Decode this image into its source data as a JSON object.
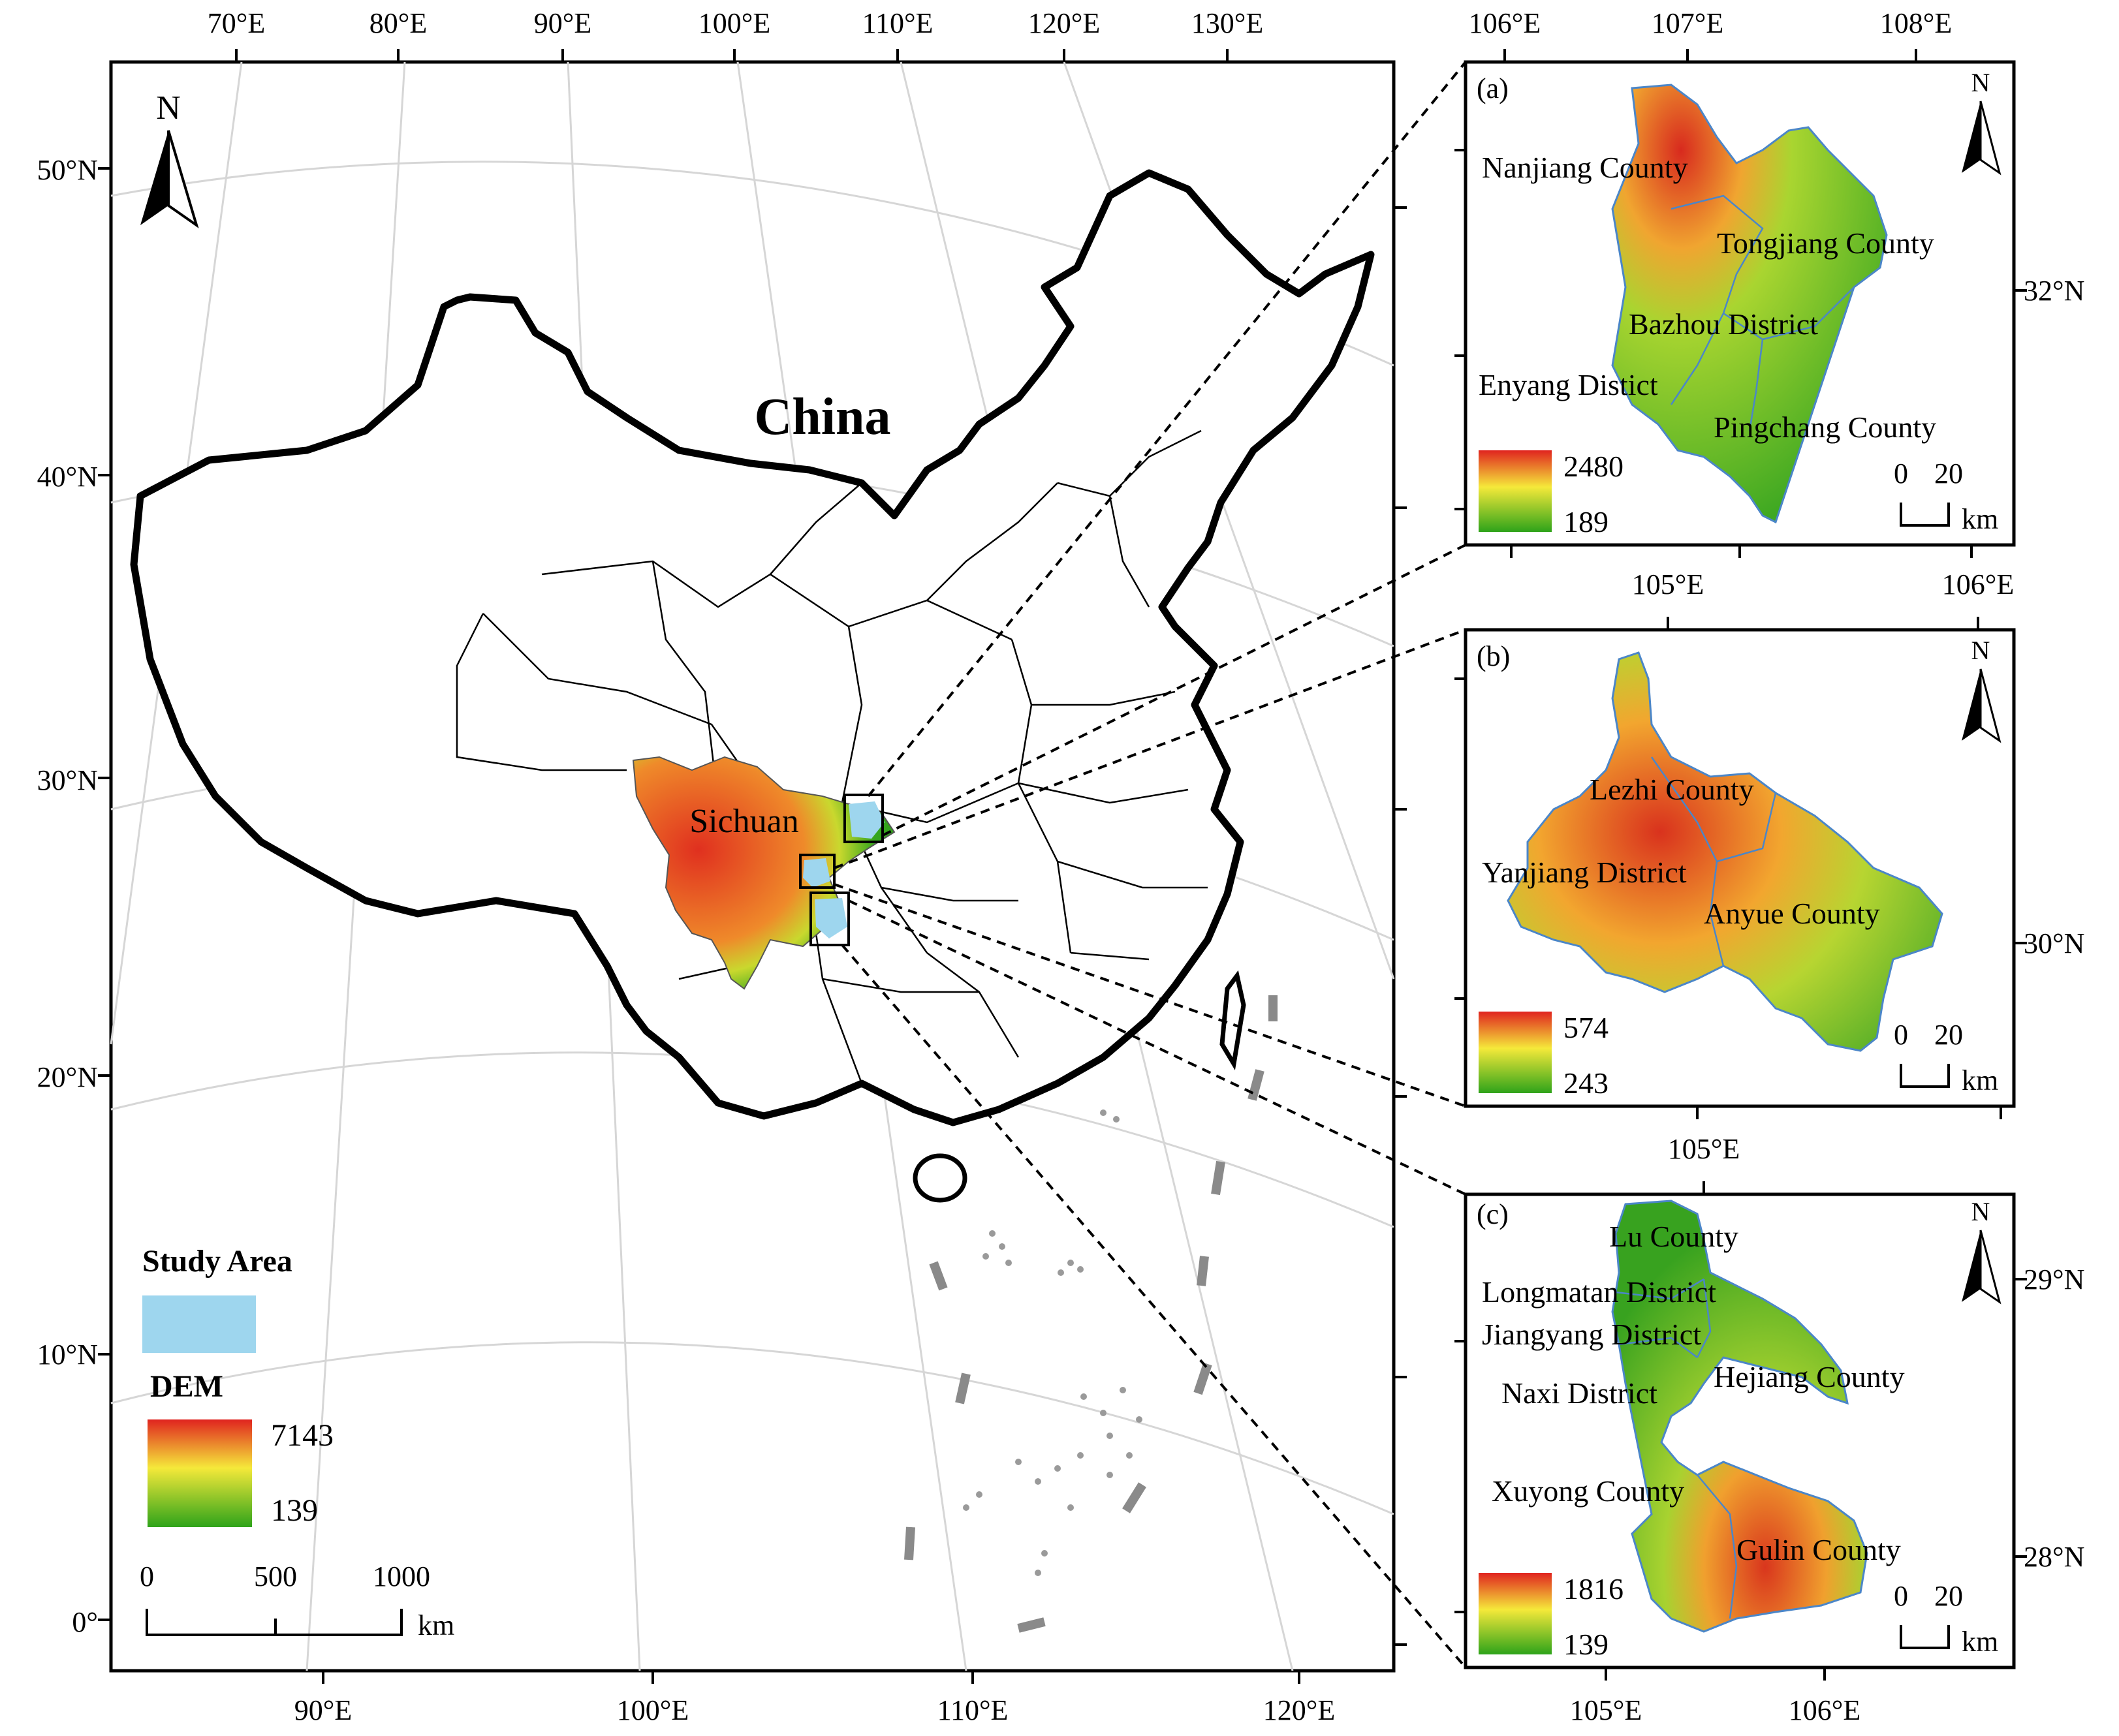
{
  "main_map": {
    "country_label": "China",
    "province_label": "Sichuan",
    "top_lon_labels": [
      "70°E",
      "80°E",
      "90°E",
      "100°E",
      "110°E",
      "120°E",
      "130°E"
    ],
    "bottom_lon_labels": [
      "90°E",
      "100°E",
      "110°E",
      "120°E"
    ],
    "lat_labels": [
      "50°N",
      "40°N",
      "30°N",
      "20°N",
      "10°N",
      "0°"
    ],
    "north_label": "N",
    "legend": {
      "study_area_title": "Study Area",
      "study_area_color": "#9ed6ee",
      "dem_title": "DEM",
      "dem_max": "7143",
      "dem_min": "139"
    },
    "scale": {
      "ticks": [
        "0",
        "500",
        "1000"
      ],
      "unit": "km"
    }
  },
  "insets": [
    {
      "panel_label": "(a)",
      "top_lon_labels": [
        "106°E",
        "107°E",
        "108°E"
      ],
      "right_lat_labels": [
        "32°N"
      ],
      "counties": [
        "Nanjiang County",
        "Tongjiang County",
        "Bazhou District",
        "Enyang Distict",
        "Pingchang County"
      ],
      "dem_max": "2480",
      "dem_min": "189",
      "scale_ticks": [
        "0",
        "20"
      ],
      "scale_unit": "km",
      "north_label": "N"
    },
    {
      "panel_label": "(b)",
      "top_lon_labels": [
        "105°E",
        "106°E"
      ],
      "right_lat_labels": [
        "30°N"
      ],
      "counties": [
        "Lezhi County",
        "Yanjiang District",
        "Anyue County"
      ],
      "dem_max": "574",
      "dem_min": "243",
      "scale_ticks": [
        "0",
        "20"
      ],
      "scale_unit": "km",
      "north_label": "N"
    },
    {
      "panel_label": "(c)",
      "top_lon_labels": [
        "105°E"
      ],
      "bottom_lon_labels": [
        "105°E",
        "106°E"
      ],
      "right_lat_labels": [
        "29°N",
        "28°N"
      ],
      "counties": [
        "Lu County",
        "Longmatan District",
        "Jiangyang District",
        "Naxi District",
        "Hejiang County",
        "Xuyong County",
        "Gulin County"
      ],
      "dem_max": "1816",
      "dem_min": "139",
      "scale_ticks": [
        "0",
        "20"
      ],
      "scale_unit": "km",
      "north_label": "N"
    }
  ],
  "colors": {
    "dem_high": "#e0241f",
    "dem_mid": "#f5e93a",
    "dem_low": "#2ea31a",
    "study_area": "#9ed6ee",
    "boundary": "#000000",
    "graticule": "#d8d8d8"
  }
}
